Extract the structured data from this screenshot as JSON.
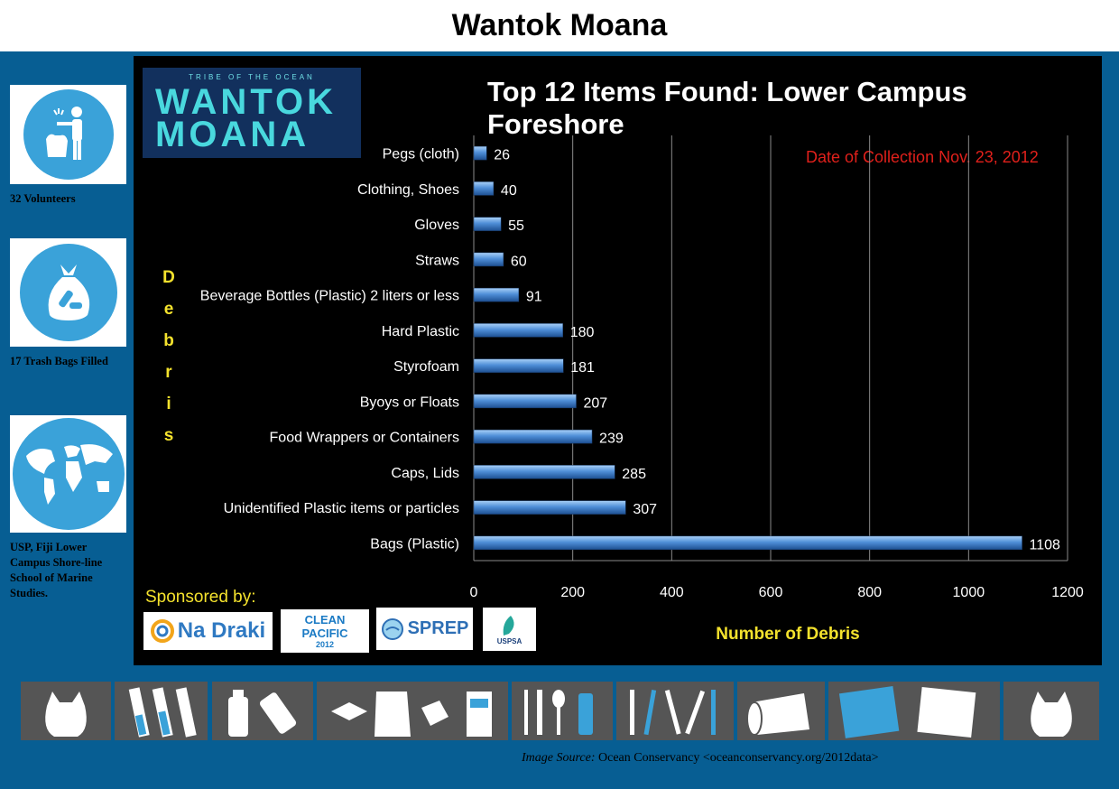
{
  "page_title": "Wantok Moana",
  "sidebar": {
    "volunteers": "32 Volunteers",
    "bags": "17 Trash Bags Filled",
    "location": "USP, Fiji Lower Campus Shore-line School of Marine Studies."
  },
  "logo": {
    "tagline": "TRIBE OF THE OCEAN",
    "line1": "WANTOK",
    "line2": "MOANA"
  },
  "collection_date": "Date of Collection Nov. 23, 2012",
  "debris_letters": [
    "D",
    "e",
    "b",
    "r",
    "i",
    "s"
  ],
  "sponsored_label": "Sponsored by:",
  "sponsors": [
    {
      "name": "Na Draki"
    },
    {
      "name": "CLEAN PACIFIC",
      "year": "2012"
    },
    {
      "name": "SPREP"
    },
    {
      "name": "USPSA"
    }
  ],
  "image_source": {
    "label": "Image Source:",
    "text": "Ocean Conservancy <oceanconservancy.org/2012data>"
  },
  "colors": {
    "background": "#075e93",
    "panel": "#000000",
    "bar": "#4f8fd8",
    "accent_yellow": "#f4e22d",
    "date_red": "#e0201b"
  },
  "chart_data": {
    "type": "bar",
    "orientation": "horizontal",
    "title": "Top 12 Items Found: Lower Campus Foreshore",
    "xlabel": "Number of Debris",
    "ylabel": "Debris",
    "xlim": [
      0,
      1200
    ],
    "xticks": [
      0,
      200,
      400,
      600,
      800,
      1000,
      1200
    ],
    "grid": true,
    "categories": [
      "Pegs (cloth)",
      "Clothing, Shoes",
      "Gloves",
      "Straws",
      "Beverage Bottles (Plastic) 2 liters or less",
      "Hard Plastic",
      "Styrofoam",
      "Byoys or Floats",
      "Food Wrappers or Containers",
      "Caps, Lids",
      "Unidentified Plastic items or particles",
      "Bags (Plastic)"
    ],
    "values": [
      26,
      40,
      55,
      60,
      91,
      180,
      181,
      207,
      239,
      285,
      307,
      1108
    ]
  }
}
